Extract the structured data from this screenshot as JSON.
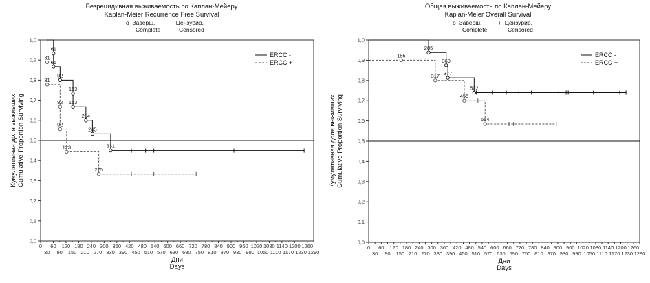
{
  "charts": [
    {
      "title_ru": "Безрецидивная выживаемость по Каплан-Мейеру",
      "title_en": "Kaplan-Meier Recurrence Free Survival",
      "legend_top": {
        "complete_ru": "Заверш.",
        "complete_en": "Complete",
        "censored_ru": "Цензурир.",
        "censored_en": "Censored",
        "complete_symbol": "o",
        "censored_symbol": "+"
      },
      "ylabel_ru": "Кумулятивная доля выживших",
      "ylabel_en": "Cumulative Proportion Surviving",
      "xlabel_ru": "Дни",
      "xlabel_en": "Days",
      "y_ticks": [
        "0,0",
        "0,1",
        "0,2",
        "0,3",
        "0,4",
        "0,5",
        "0,6",
        "0,7",
        "0,8",
        "0,9",
        "1,0"
      ],
      "x_ticks_top": [
        "0",
        "60",
        "120",
        "180",
        "240",
        "300",
        "360",
        "420",
        "480",
        "540",
        "600",
        "660",
        "720",
        "780",
        "840",
        "900",
        "960",
        "1020",
        "1080",
        "1140",
        "1200",
        "1260"
      ],
      "x_ticks_bottom": [
        "30",
        "90",
        "150",
        "210",
        "270",
        "330",
        "390",
        "450",
        "510",
        "570",
        "630",
        "690",
        "750",
        "810",
        "870",
        "930",
        "990",
        "1050",
        "1110",
        "1170",
        "1230",
        "1290"
      ],
      "series_legend": [
        "ERCC -",
        "ERCC +"
      ]
    },
    {
      "title_ru": "Общая выживаемость по Каплан-Мейеру",
      "title_en": "Kaplan-Meier Overall Survival",
      "legend_top": {
        "complete_ru": "Заверш.",
        "complete_en": "Complete",
        "censored_ru": "Цензурир.",
        "censored_en": "Censored",
        "complete_symbol": "o",
        "censored_symbol": "+"
      },
      "ylabel_ru": "Кумулятивная доля выживших",
      "ylabel_en": "Cumulative Proportion Surviving",
      "xlabel_ru": "Дни",
      "xlabel_en": "Days",
      "y_ticks": [
        "0,0",
        "0,1",
        "0,2",
        "0,3",
        "0,4",
        "0,5",
        "0,6",
        "0,7",
        "0,8",
        "0,9",
        "1,0"
      ],
      "x_ticks_top": [
        "0",
        "60",
        "120",
        "180",
        "240",
        "300",
        "360",
        "420",
        "480",
        "540",
        "600",
        "660",
        "720",
        "780",
        "840",
        "900",
        "960",
        "1020",
        "1080",
        "1140",
        "1200",
        "1260"
      ],
      "x_ticks_bottom": [
        "30",
        "90",
        "150",
        "210",
        "270",
        "330",
        "390",
        "450",
        "510",
        "570",
        "630",
        "690",
        "750",
        "810",
        "870",
        "930",
        "990",
        "1050",
        "1110",
        "1170",
        "1230",
        "1290"
      ],
      "series_legend": [
        "ERCC -",
        "ERCC +"
      ]
    }
  ],
  "chart_data": [
    {
      "type": "line",
      "title": "Kaplan-Meier Recurrence Free Survival",
      "xlabel": "Days",
      "ylabel": "Cumulative Proportion Surviving",
      "xlim": [
        0,
        1290
      ],
      "ylim": [
        0,
        1.0
      ],
      "ref_line_y": 0.5,
      "series": [
        {
          "name": "ERCC -",
          "style": "solid",
          "steps": [
            [
              0,
              1.0
            ],
            [
              61,
              1.0
            ],
            [
              61,
              0.867
            ],
            [
              92,
              0.867
            ],
            [
              92,
              0.8
            ],
            [
              153,
              0.8
            ],
            [
              153,
              0.667
            ],
            [
              214,
              0.667
            ],
            [
              214,
              0.6
            ],
            [
              245,
              0.6
            ],
            [
              245,
              0.533
            ],
            [
              331,
              0.533
            ],
            [
              331,
              0.45
            ],
            [
              1245,
              0.45
            ]
          ],
          "events": [
            {
              "day": 61,
              "y": 0.933,
              "label": "61"
            },
            {
              "day": 61,
              "y": 0.867,
              "label": "61"
            },
            {
              "day": 92,
              "y": 0.8,
              "label": "92"
            },
            {
              "day": 153,
              "y": 0.733,
              "label": "153"
            },
            {
              "day": 153,
              "y": 0.667,
              "label": "153"
            },
            {
              "day": 214,
              "y": 0.6,
              "label": "214"
            },
            {
              "day": 245,
              "y": 0.533,
              "label": "245"
            },
            {
              "day": 331,
              "y": 0.45,
              "label": "331"
            }
          ],
          "censored": [
            {
              "day": 429,
              "y": 0.45
            },
            {
              "day": 496,
              "y": 0.45
            },
            {
              "day": 535,
              "y": 0.45
            },
            {
              "day": 762,
              "y": 0.45
            },
            {
              "day": 913,
              "y": 0.45
            },
            {
              "day": 1245,
              "y": 0.45
            }
          ]
        },
        {
          "name": "ERCC +",
          "style": "dashed",
          "steps": [
            [
              0,
              1.0
            ],
            [
              31,
              1.0
            ],
            [
              31,
              0.778
            ],
            [
              92,
              0.778
            ],
            [
              92,
              0.556
            ],
            [
              123,
              0.556
            ],
            [
              123,
              0.444
            ],
            [
              275,
              0.444
            ],
            [
              275,
              0.333
            ],
            [
              735,
              0.333
            ]
          ],
          "events": [
            {
              "day": 31,
              "y": 0.889,
              "label": "31"
            },
            {
              "day": 31,
              "y": 0.778,
              "label": "31"
            },
            {
              "day": 92,
              "y": 0.667,
              "label": "92"
            },
            {
              "day": 92,
              "y": 0.556,
              "label": "92"
            },
            {
              "day": 123,
              "y": 0.444,
              "label": "123"
            },
            {
              "day": 275,
              "y": 0.333,
              "label": "275"
            }
          ],
          "censored": [
            {
              "day": 429,
              "y": 0.333
            },
            {
              "day": 535,
              "y": 0.333
            },
            {
              "day": 735,
              "y": 0.333
            }
          ]
        }
      ]
    },
    {
      "type": "line",
      "title": "Kaplan-Meier Overall Survival",
      "xlabel": "Days",
      "ylabel": "Cumulative Proportion Surviving",
      "xlim": [
        0,
        1290
      ],
      "ylim": [
        0,
        1.0
      ],
      "ref_line_y": 0.5,
      "series": [
        {
          "name": "ERCC -",
          "style": "solid",
          "steps": [
            [
              0,
              1.0
            ],
            [
              285,
              1.0
            ],
            [
              285,
              0.938
            ],
            [
              369,
              0.938
            ],
            [
              369,
              0.875
            ],
            [
              377,
              0.875
            ],
            [
              377,
              0.8125
            ],
            [
              502,
              0.8125
            ],
            [
              502,
              0.74
            ],
            [
              1225,
              0.74
            ]
          ],
          "events": [
            {
              "day": 285,
              "y": 0.938,
              "label": "285"
            },
            {
              "day": 369,
              "y": 0.875,
              "label": "369"
            },
            {
              "day": 377,
              "y": 0.8125,
              "label": "377"
            },
            {
              "day": 502,
              "y": 0.74,
              "label": "502"
            }
          ],
          "censored": [
            {
              "day": 512,
              "y": 0.74
            },
            {
              "day": 590,
              "y": 0.74
            },
            {
              "day": 655,
              "y": 0.74
            },
            {
              "day": 715,
              "y": 0.74
            },
            {
              "day": 775,
              "y": 0.74
            },
            {
              "day": 830,
              "y": 0.74
            },
            {
              "day": 905,
              "y": 0.74
            },
            {
              "day": 940,
              "y": 0.74
            },
            {
              "day": 950,
              "y": 0.74
            },
            {
              "day": 1070,
              "y": 0.74
            },
            {
              "day": 1195,
              "y": 0.74
            },
            {
              "day": 1225,
              "y": 0.74
            }
          ]
        },
        {
          "name": "ERCC +",
          "style": "dashed",
          "steps": [
            [
              0,
              0.9
            ],
            [
              155,
              0.9
            ],
            [
              317,
              0.9
            ],
            [
              317,
              0.8
            ],
            [
              455,
              0.8
            ],
            [
              455,
              0.7
            ],
            [
              554,
              0.7
            ],
            [
              554,
              0.585
            ],
            [
              893,
              0.585
            ]
          ],
          "events": [
            {
              "day": 155,
              "y": 0.9,
              "label": "155"
            },
            {
              "day": 317,
              "y": 0.8,
              "label": "317"
            },
            {
              "day": 455,
              "y": 0.7,
              "label": "455"
            },
            {
              "day": 554,
              "y": 0.585,
              "label": "554"
            }
          ],
          "censored": [
            {
              "day": 520,
              "y": 0.7
            },
            {
              "day": 668,
              "y": 0.585
            },
            {
              "day": 690,
              "y": 0.585
            },
            {
              "day": 820,
              "y": 0.585
            },
            {
              "day": 893,
              "y": 0.585
            }
          ]
        }
      ]
    }
  ]
}
